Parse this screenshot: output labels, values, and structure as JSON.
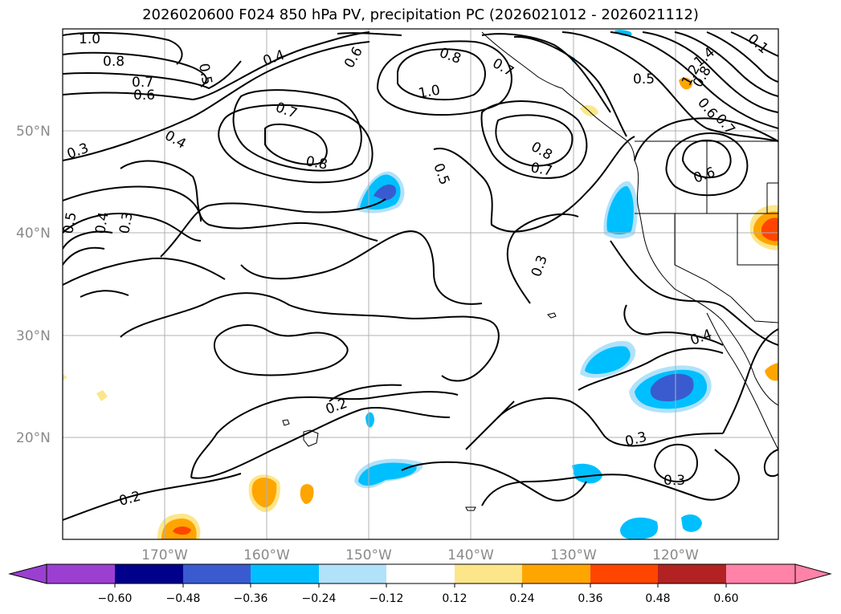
{
  "title": "2026020600 F024 850 hPa PV, precipitation PC (2026021012 - 2026021112)",
  "map": {
    "lat_ticks": [
      "50°N",
      "40°N",
      "30°N",
      "20°N"
    ],
    "lon_ticks": [
      "170°W",
      "160°W",
      "150°W",
      "140°W",
      "130°W",
      "120°W"
    ],
    "contour_labels": [
      "1.0",
      "0.8",
      "0.7",
      "0.6",
      "0.5",
      "0.4",
      "0.3",
      "0.2",
      "0.1",
      "1.4",
      "1.2"
    ]
  },
  "colorbar": {
    "ticks": [
      "−0.60",
      "−0.48",
      "−0.36",
      "−0.24",
      "−0.12",
      "0.12",
      "0.24",
      "0.36",
      "0.48",
      "0.60"
    ],
    "colors": [
      "#9b3fd1",
      "#00008b",
      "#3a5bd0",
      "#00bfff",
      "#b0e2fa",
      "#ffffff",
      "#fde68a",
      "#ffa500",
      "#ff4500",
      "#b22222",
      "#ff82a8"
    ]
  }
}
